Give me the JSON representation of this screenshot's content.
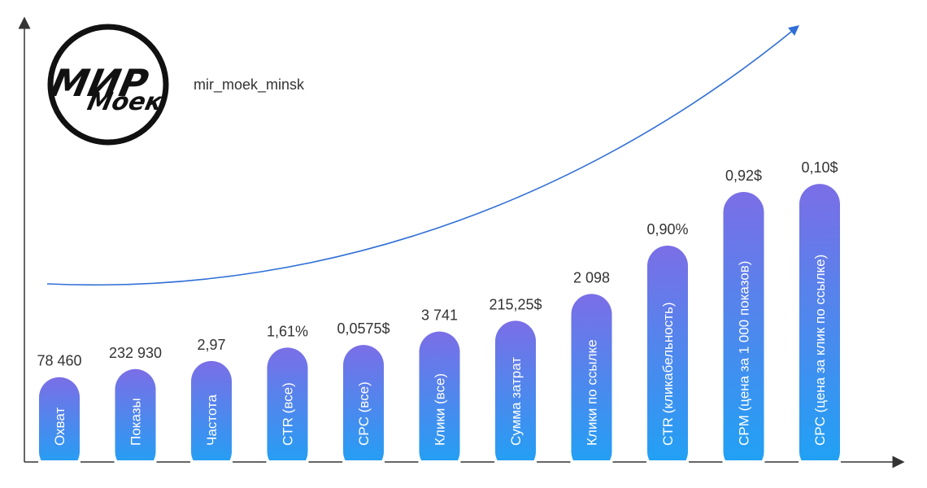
{
  "brand": {
    "logo_line1": "МИР",
    "logo_line2": "Моек",
    "handle": "mir_moek_minsk"
  },
  "colors": {
    "bar_top": "#7b6ee6",
    "bar_bottom": "#1da3f5",
    "trend": "#2f6fd6",
    "axis": "#333333"
  },
  "chart_data": {
    "type": "bar",
    "categories": [
      "Охват",
      "Показы",
      "Частота",
      "CTR (все)",
      "CPC (все)",
      "Клики (все)",
      "Сумма затрат",
      "Клики по ссылке",
      "CTR (кликабельность)",
      "CPM (цена за 1 000 показов)",
      "CPC (цена за клик по ссылке)"
    ],
    "value_labels": [
      "78 460",
      "232 930",
      "2,97",
      "1,61%",
      "0,0575$",
      "3 741",
      "215,25$",
      "2 098",
      "0,90%",
      "0,92$",
      "0,10$"
    ],
    "values": [
      78460,
      232930,
      2.97,
      1.61,
      0.0575,
      3741,
      215.25,
      2098,
      0.9,
      0.92,
      0.1
    ],
    "relative_heights": [
      0.31,
      0.34,
      0.37,
      0.42,
      0.43,
      0.48,
      0.52,
      0.62,
      0.8,
      1.0,
      1.03
    ],
    "trend_line": true,
    "axes_arrows": true,
    "grid": false,
    "legend": "none"
  }
}
